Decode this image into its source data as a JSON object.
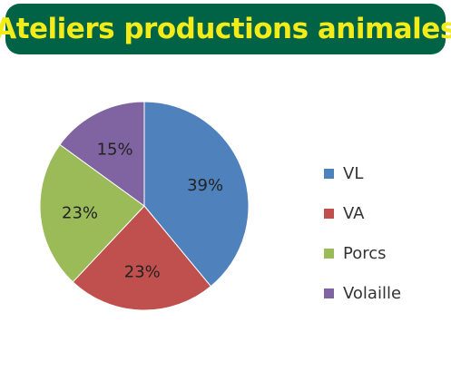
{
  "header": {
    "title": "Ateliers productions animales"
  },
  "colors": {
    "banner_background": "#006346",
    "banner_text": "#f3ec18"
  },
  "chart_data": {
    "type": "pie",
    "title": "",
    "slices": [
      {
        "label": "VL",
        "value": 39,
        "data_label": "39%",
        "color": "#4f81bd"
      },
      {
        "label": "VA",
        "value": 23,
        "data_label": "23%",
        "color": "#c0504d"
      },
      {
        "label": "Porcs",
        "value": 23,
        "data_label": "23%",
        "color": "#9bbb59"
      },
      {
        "label": "Volaille",
        "value": 15,
        "data_label": "15%",
        "color": "#8064a2"
      }
    ],
    "legend_position": "right"
  }
}
